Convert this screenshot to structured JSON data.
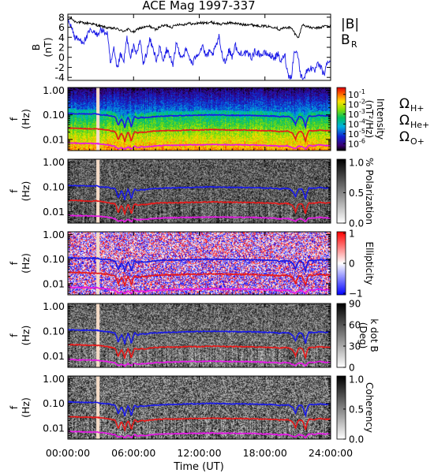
{
  "chart_data": {
    "type": "spectrogram-stack",
    "title": "ACE Mag 1997-337",
    "x_axis": {
      "label": "Time (UT)",
      "range_hours": [
        0,
        24
      ],
      "tick_labels": [
        "00:00:00",
        "06:00:00",
        "12:00:00",
        "18:00:00",
        "24:00:00"
      ],
      "tick_hours": [
        0,
        6,
        12,
        18,
        24
      ]
    },
    "data_gap_hours": [
      2.6,
      2.9
    ],
    "mag_panel": {
      "ylabel_top": "B",
      "ylabel_bottom": "(nT)",
      "ylim": [
        -4.6,
        8.6
      ],
      "yticks": [
        -4,
        -2,
        0,
        2,
        4,
        6,
        8
      ],
      "legend": [
        {
          "text": "|B|",
          "sub": "",
          "color": "#000000"
        },
        {
          "text": "B",
          "sub": "R",
          "color": "#1a1ae6"
        }
      ],
      "series": [
        {
          "name": "|B|",
          "color": "#000000",
          "x": [
            0,
            0.3,
            0.6,
            1,
            1.5,
            2,
            2.5,
            3,
            3.4,
            3.8,
            4.2,
            4.6,
            5,
            5.5,
            6,
            6.5,
            7,
            7.5,
            8,
            8.5,
            9,
            9.5,
            10,
            10.5,
            11,
            11.5,
            12,
            12.5,
            13,
            13.5,
            14,
            14.5,
            15,
            15.5,
            16,
            16.5,
            17,
            17.5,
            18,
            18.5,
            19,
            19.3,
            19.6,
            19.9,
            20.2,
            20.5,
            20.8,
            21.1,
            21.4,
            21.7,
            22,
            22.5,
            23,
            23.5,
            24
          ],
          "y": [
            7.5,
            7.8,
            7.2,
            7.0,
            6.8,
            6.8,
            6.5,
            6.2,
            6.0,
            5.8,
            5.8,
            5.6,
            5.2,
            5.6,
            5.0,
            5.8,
            6.0,
            6.2,
            5.5,
            6.2,
            6.4,
            6.0,
            6.6,
            6.5,
            6.8,
            6.6,
            6.9,
            6.8,
            7.0,
            6.8,
            6.6,
            6.8,
            6.9,
            6.7,
            6.5,
            6.6,
            6.4,
            6.3,
            6.2,
            6.1,
            6.0,
            5.5,
            5.8,
            5.9,
            6.0,
            5.6,
            4.5,
            4.0,
            6.5,
            6.3,
            6.0,
            5.8,
            5.9,
            6.3,
            6.1
          ]
        },
        {
          "name": "B_R",
          "color": "#1a1ae6",
          "x": [
            0,
            0.3,
            0.6,
            1,
            1.5,
            2,
            2.3,
            2.6,
            3,
            3.3,
            3.6,
            3.9,
            4.2,
            4.5,
            4.8,
            5.1,
            5.4,
            5.7,
            6,
            6.3,
            6.6,
            6.9,
            7.2,
            7.5,
            7.8,
            8.1,
            8.4,
            8.7,
            9,
            9.3,
            9.6,
            9.9,
            10.2,
            10.5,
            10.8,
            11.1,
            11.4,
            11.7,
            12,
            12.3,
            12.6,
            12.9,
            13.2,
            13.5,
            13.8,
            14.1,
            14.4,
            14.7,
            15,
            15.3,
            15.6,
            15.9,
            16.2,
            16.5,
            16.8,
            17.1,
            17.4,
            17.7,
            18,
            18.3,
            18.6,
            18.9,
            19.2,
            19.5,
            19.8,
            20.1,
            20.4,
            20.7,
            21,
            21.3,
            21.6,
            21.9,
            22.2,
            22.5,
            22.8,
            23.1,
            23.4,
            23.7,
            24
          ],
          "y": [
            7.0,
            6.5,
            4.0,
            3.5,
            3.2,
            5.2,
            5.0,
            4.5,
            5.5,
            5.0,
            4.8,
            -1.5,
            1.5,
            -2.5,
            0.5,
            -1.0,
            4.0,
            -0.5,
            2.5,
            0.5,
            3.5,
            -1.5,
            1.0,
            3.5,
            1.5,
            -0.5,
            2.0,
            -1.0,
            1.5,
            0.5,
            -2.0,
            3.0,
            0.8,
            0.2,
            1.5,
            0.0,
            -1.5,
            0.5,
            1.0,
            2.5,
            0.0,
            1.0,
            0.5,
            2.0,
            4.0,
            0.5,
            -1.0,
            1.5,
            0.2,
            2.5,
            0.5,
            1.0,
            0.8,
            0.5,
            0.0,
            1.2,
            0.8,
            0.5,
            0.8,
            0.6,
            0.2,
            0.0,
            0.5,
            -1.0,
            0.8,
            -3.5,
            -4.0,
            1.5,
            0.5,
            -4.0,
            -3.8,
            -2.5,
            -2.0,
            -3.0,
            -1.5,
            -2.0,
            -3.5,
            -1.0,
            -0.5
          ]
        }
      ]
    },
    "freq_axis": {
      "ylabel_top": "f",
      "ylabel_bottom": "(Hz)",
      "scale": "log",
      "ylim_hz": [
        0.0035,
        1.3
      ],
      "tick_values": [
        1.0,
        0.1,
        0.01
      ],
      "tick_labels": [
        "1.00",
        "0.10",
        "0.01"
      ]
    },
    "gyro_lines": [
      {
        "name": "Ω_H+",
        "symbol": "Ω",
        "sub": "H+",
        "color": "#1a1ae6",
        "x": [
          0,
          1,
          2,
          2.6,
          3,
          3.6,
          4,
          4.3,
          4.6,
          4.9,
          5.2,
          5.5,
          5.8,
          6.1,
          6.4,
          6.7,
          7,
          7.5,
          8,
          9,
          10,
          11,
          12,
          13,
          14,
          15,
          16,
          17,
          17.5,
          18,
          18.5,
          19,
          19.3,
          19.6,
          19.9,
          20.2,
          20.5,
          20.8,
          21.1,
          21.4,
          21.7,
          22,
          22.5,
          23,
          23.5,
          24
        ],
        "y": [
          0.115,
          0.11,
          0.11,
          0.11,
          0.1,
          0.097,
          0.09,
          0.085,
          0.035,
          0.07,
          0.03,
          0.08,
          0.03,
          0.085,
          0.07,
          0.08,
          0.075,
          0.082,
          0.085,
          0.09,
          0.092,
          0.095,
          0.097,
          0.1,
          0.098,
          0.096,
          0.095,
          0.094,
          0.093,
          0.09,
          0.09,
          0.088,
          0.082,
          0.086,
          0.087,
          0.085,
          0.07,
          0.04,
          0.085,
          0.08,
          0.03,
          0.09,
          0.088,
          0.095,
          0.09,
          0.092
        ]
      },
      {
        "name": "Ω_He+",
        "symbol": "Ω",
        "sub": "He+",
        "color": "#e61a1a",
        "x": [
          0,
          1,
          2,
          2.6,
          3,
          3.6,
          4,
          4.3,
          4.6,
          4.9,
          5.2,
          5.5,
          5.8,
          6.1,
          6.4,
          6.7,
          7,
          7.5,
          8,
          9,
          10,
          11,
          12,
          13,
          14,
          15,
          16,
          17,
          17.5,
          18,
          18.5,
          19,
          19.3,
          19.6,
          19.9,
          20.2,
          20.5,
          20.8,
          21.1,
          21.4,
          21.7,
          22,
          22.5,
          23,
          23.5,
          24
        ],
        "y": [
          0.029,
          0.028,
          0.027,
          0.027,
          0.026,
          0.024,
          0.022,
          0.021,
          0.009,
          0.018,
          0.008,
          0.02,
          0.008,
          0.021,
          0.018,
          0.02,
          0.019,
          0.021,
          0.022,
          0.023,
          0.023,
          0.024,
          0.024,
          0.025,
          0.0245,
          0.024,
          0.024,
          0.0235,
          0.023,
          0.0225,
          0.0225,
          0.022,
          0.0205,
          0.0215,
          0.022,
          0.021,
          0.018,
          0.01,
          0.021,
          0.02,
          0.008,
          0.0225,
          0.022,
          0.024,
          0.0225,
          0.023
        ]
      },
      {
        "name": "Ω_O+",
        "symbol": "Ω",
        "sub": "O+",
        "color": "#e619e6",
        "x": [
          0,
          1,
          2,
          2.6,
          3,
          3.6,
          4,
          4.3,
          4.6,
          4.9,
          5.2,
          5.5,
          5.8,
          6.1,
          6.4,
          6.7,
          7,
          7.5,
          8,
          9,
          10,
          11,
          12,
          13,
          14,
          15,
          16,
          17,
          17.5,
          18,
          18.5,
          19,
          19.3,
          19.6,
          19.9,
          20.2,
          20.5,
          20.8,
          21.1,
          21.4,
          21.7,
          22,
          22.5,
          23,
          23.5,
          24
        ],
        "y": [
          0.0072,
          0.007,
          0.0068,
          0.0068,
          0.0065,
          0.006,
          0.0055,
          0.0053,
          0.0042,
          0.0046,
          0.004,
          0.005,
          0.004,
          0.0053,
          0.0046,
          0.005,
          0.0048,
          0.0052,
          0.0054,
          0.0057,
          0.0058,
          0.006,
          0.006,
          0.0062,
          0.0061,
          0.006,
          0.006,
          0.0059,
          0.0058,
          0.0056,
          0.0056,
          0.0055,
          0.0051,
          0.0054,
          0.0055,
          0.0052,
          0.0046,
          0.0042,
          0.0053,
          0.005,
          0.004,
          0.0056,
          0.0055,
          0.006,
          0.0056,
          0.0058
        ]
      }
    ],
    "spectral_panels": [
      {
        "id": "intensity",
        "colormap": "rainbow",
        "value_scale": "log",
        "colorbar_label_top": "Intensity",
        "colorbar_label_bottom": "(nT²/Hz)",
        "colorbar_ticks": [
          {
            "base": "10",
            "exp": "-1"
          },
          {
            "base": "10",
            "exp": "-2"
          },
          {
            "base": "10",
            "exp": "-3"
          },
          {
            "base": "10",
            "exp": "-4"
          },
          {
            "base": "10",
            "exp": "-5"
          },
          {
            "base": "10",
            "exp": "-6"
          }
        ],
        "colorbar_range_exp": [
          -6.7,
          -0.3
        ],
        "show_legend": true
      },
      {
        "id": "polarization",
        "colormap": "gray",
        "value_scale": "linear",
        "colorbar_label_top": "% Polarization",
        "colorbar_label_bottom": "",
        "colorbar_ticks": [
          "1.0",
          "0.5",
          "0.0"
        ],
        "colorbar_range": [
          0,
          1.05
        ]
      },
      {
        "id": "ellipticity",
        "colormap": "bwr",
        "value_scale": "linear",
        "colorbar_label_top": "Ellipticity",
        "colorbar_label_bottom": "",
        "colorbar_ticks": [
          "1",
          "0",
          "−1"
        ],
        "colorbar_range": [
          -1.05,
          1.05
        ]
      },
      {
        "id": "kdotb",
        "colormap": "gray",
        "value_scale": "linear",
        "colorbar_label_top": "k dot B",
        "colorbar_label_bottom": "(Deg)",
        "colorbar_ticks": [
          "90",
          "60",
          "30",
          "0"
        ],
        "colorbar_range": [
          0,
          90
        ]
      },
      {
        "id": "coherency",
        "colormap": "gray",
        "value_scale": "linear",
        "colorbar_label_top": "Coherency",
        "colorbar_label_bottom": "",
        "colorbar_ticks": [
          "1.0",
          "0.5",
          "0.0"
        ],
        "colorbar_range": [
          0,
          1.05
        ]
      }
    ],
    "colors": {
      "gap": "#f5dcc8",
      "frame": "#000000"
    }
  }
}
